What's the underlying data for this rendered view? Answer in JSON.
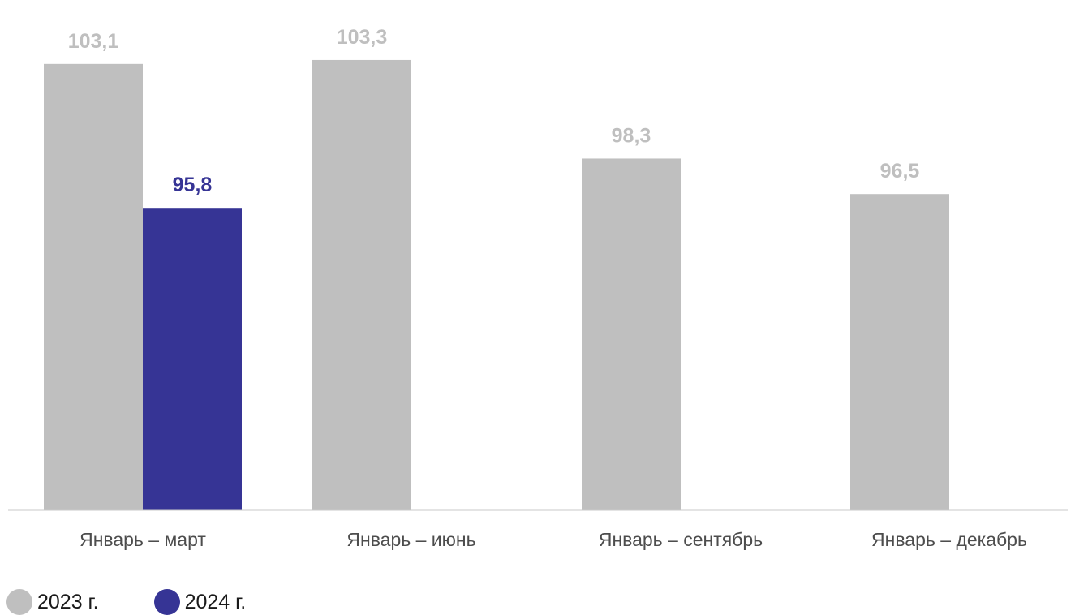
{
  "chart_data": {
    "type": "bar",
    "categories": [
      "Январь – март",
      "Январь – июнь",
      "Январь – сентябрь",
      "Январь – декабрь"
    ],
    "series": [
      {
        "name": "2023 г.",
        "color": "#bfbfbf",
        "values": [
          103.1,
          103.3,
          98.3,
          96.5
        ],
        "labels": [
          "103,1",
          "103,3",
          "98,3",
          "96,5"
        ]
      },
      {
        "name": "2024 г.",
        "color": "#363495",
        "values": [
          95.8,
          null,
          null,
          null
        ],
        "labels": [
          "95,8",
          null,
          null,
          null
        ]
      }
    ],
    "title": "",
    "xlabel": "",
    "ylabel": "",
    "ylim": [
      80.5,
      104.5
    ],
    "grid": false,
    "legend_position": "bottom-left",
    "axis_color": "#c8c8c8"
  }
}
